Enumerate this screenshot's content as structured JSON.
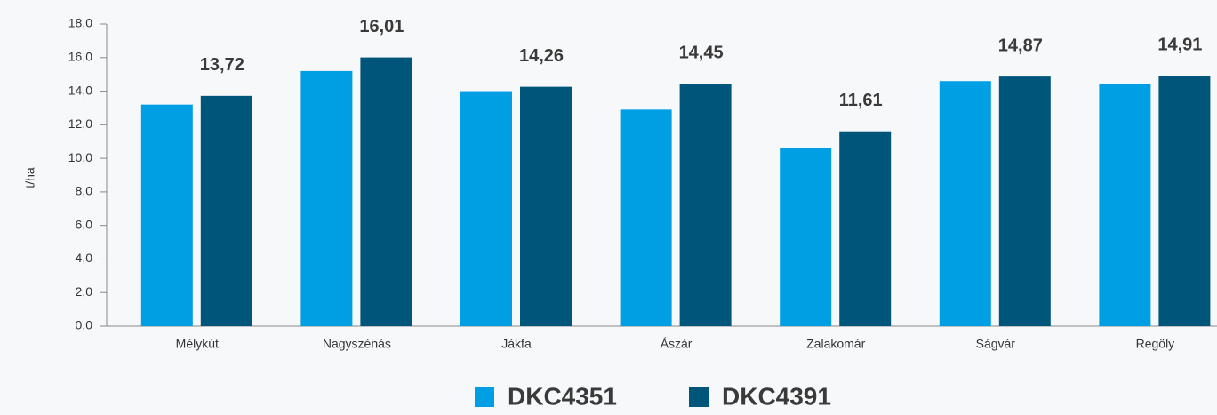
{
  "chart_data": {
    "type": "bar",
    "y_label": "t/ha",
    "categories": [
      "Mélykút",
      "Nagyszénás",
      "Jákfa",
      "Ászár",
      "Zalakomár",
      "Ságvár",
      "Regöly"
    ],
    "series": [
      {
        "name": "DKC4351",
        "color": "#009fe3",
        "values": [
          13.2,
          15.2,
          14.0,
          12.9,
          10.6,
          14.6,
          14.4
        ]
      },
      {
        "name": "DKC4391",
        "color": "#00567a",
        "values": [
          13.72,
          16.01,
          14.26,
          14.45,
          11.61,
          14.87,
          14.91
        ],
        "value_labels": [
          "13,72",
          "16,01",
          "14,26",
          "14,45",
          "11,61",
          "14,87",
          "14,91"
        ]
      }
    ],
    "ylim": [
      0,
      18
    ],
    "yticks": [
      {
        "value": 0,
        "label": "0,0"
      },
      {
        "value": 2,
        "label": "2,0"
      },
      {
        "value": 4,
        "label": "4,0"
      },
      {
        "value": 6,
        "label": "6,0"
      },
      {
        "value": 8,
        "label": "8,0"
      },
      {
        "value": 10,
        "label": "10,0"
      },
      {
        "value": 12,
        "label": "12,0"
      },
      {
        "value": 14,
        "label": "14,0"
      },
      {
        "value": 16,
        "label": "16,0"
      },
      {
        "value": 18,
        "label": "18,0"
      }
    ],
    "legend": "bottom"
  }
}
